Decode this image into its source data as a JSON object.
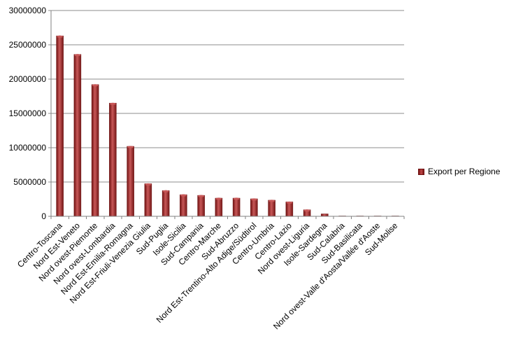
{
  "chart_data": {
    "type": "bar",
    "categories": [
      "Centro-Toscana",
      "Nord Est-Veneto",
      "Nord ovest-Piemonte",
      "Nord ovest-Lombardia",
      "Nord Est-Emilia-Romagna",
      "Nord Est-Friuli-Venezia Giulia",
      "Sud-Puglia",
      "Isole-Sicilia",
      "Sud-Campania",
      "Centro-Marche",
      "Sud-Abruzzo",
      "Nord Est-Trentino-Alto Adige/Südtirol",
      "Centro-Umbria",
      "Centro-Lazio",
      "Nord ovest-Liguria",
      "Isole-Sardegna",
      "Sud-Calabria",
      "Sud-Basilicata",
      "Nord ovest-Valle d'Aosta/Vallée d'Aoste",
      "Sud-Molise"
    ],
    "series": [
      {
        "name": "Export per Regione",
        "values": [
          26300000,
          23600000,
          19200000,
          16500000,
          10200000,
          4750000,
          3750000,
          3150000,
          3050000,
          2650000,
          2650000,
          2550000,
          2350000,
          2100000,
          950000,
          350000,
          30000,
          20000,
          10000,
          5000
        ]
      }
    ],
    "yticks": [
      "0",
      "5000000",
      "10000000",
      "15000000",
      "20000000",
      "25000000",
      "30000000"
    ],
    "ylim": [
      0,
      30000000
    ],
    "grid": true,
    "legend_position": "right",
    "title": "",
    "xlabel": "",
    "ylabel": "",
    "colors": {
      "bar": "#9b2d2d",
      "bar_dark": "#6e1010",
      "bar_light": "#c85858",
      "grid": "#8c8c8c"
    }
  }
}
